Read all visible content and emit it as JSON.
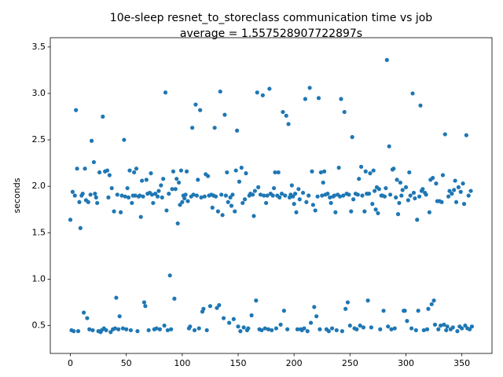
{
  "chart_data": {
    "type": "scatter",
    "title": "10e-sleep resnet_to_storeclass communication time vs job",
    "subtitle": "average = 1.557528907722897s",
    "y_label": "seconds",
    "color": "#1f77b4",
    "xlim": [
      -17.95,
      376.95
    ],
    "ylim": [
      0.2,
      3.6
    ],
    "xticks": [
      0,
      50,
      100,
      150,
      200,
      250,
      300,
      350
    ],
    "yticks": [
      0.5,
      {
        "value": 1,
        "label": "1.0"
      },
      1.5,
      {
        "value": 2,
        "label": "2.0"
      },
      2.5,
      {
        "value": 3,
        "label": "3.0"
      },
      3.5
    ],
    "x": [
      0,
      1,
      2,
      3,
      4,
      5,
      6,
      7,
      8,
      9,
      10,
      11,
      12,
      13,
      14,
      15,
      16,
      17,
      18,
      19,
      20,
      21,
      22,
      23,
      24,
      25,
      26,
      27,
      28,
      29,
      30,
      31,
      32,
      33,
      34,
      35,
      36,
      37,
      38,
      39,
      40,
      41,
      42,
      43,
      44,
      45,
      46,
      47,
      48,
      49,
      50,
      51,
      52,
      53,
      54,
      55,
      56,
      57,
      58,
      59,
      60,
      61,
      62,
      63,
      64,
      65,
      66,
      67,
      68,
      69,
      70,
      71,
      72,
      73,
      74,
      75,
      76,
      77,
      78,
      79,
      80,
      81,
      82,
      83,
      84,
      85,
      86,
      87,
      88,
      89,
      90,
      91,
      92,
      93,
      94,
      95,
      96,
      97,
      98,
      99,
      100,
      101,
      102,
      103,
      104,
      105,
      106,
      107,
      108,
      109,
      110,
      111,
      112,
      113,
      114,
      115,
      116,
      117,
      118,
      119,
      120,
      121,
      122,
      123,
      124,
      125,
      126,
      127,
      128,
      129,
      130,
      131,
      132,
      133,
      134,
      135,
      136,
      137,
      138,
      139,
      140,
      141,
      142,
      143,
      144,
      145,
      146,
      147,
      148,
      149,
      150,
      151,
      152,
      153,
      154,
      155,
      156,
      157,
      158,
      159,
      160,
      161,
      162,
      163,
      164,
      165,
      166,
      167,
      168,
      169,
      170,
      171,
      172,
      173,
      174,
      175,
      176,
      177,
      178,
      179,
      180,
      181,
      182,
      183,
      184,
      185,
      186,
      187,
      188,
      189,
      190,
      191,
      192,
      193,
      194,
      195,
      196,
      197,
      198,
      199,
      200,
      201,
      202,
      203,
      204,
      205,
      206,
      207,
      208,
      209,
      210,
      211,
      212,
      213,
      214,
      215,
      216,
      217,
      218,
      219,
      220,
      221,
      222,
      223,
      224,
      225,
      226,
      227,
      228,
      229,
      230,
      231,
      232,
      233,
      234,
      235,
      236,
      237,
      238,
      239,
      240,
      241,
      242,
      243,
      244,
      245,
      246,
      247,
      248,
      249,
      250,
      251,
      252,
      253,
      254,
      255,
      256,
      257,
      258,
      259,
      260,
      261,
      262,
      263,
      264,
      265,
      266,
      267,
      268,
      269,
      270,
      271,
      272,
      273,
      274,
      275,
      276,
      277,
      278,
      279,
      280,
      281,
      282,
      283,
      284,
      285,
      286,
      287,
      288,
      289,
      290,
      291,
      292,
      293,
      294,
      295,
      296,
      297,
      298,
      299,
      300,
      301,
      302,
      303,
      304,
      305,
      306,
      307,
      308,
      309,
      310,
      311,
      312,
      313,
      314,
      315,
      316,
      317,
      318,
      319,
      320,
      321,
      322,
      323,
      324,
      325,
      326,
      327,
      328,
      329,
      330,
      331,
      332,
      333,
      334,
      335,
      336,
      337,
      338,
      339,
      340,
      341,
      342,
      343,
      344,
      345,
      346,
      347,
      348,
      349,
      350,
      351,
      352,
      353,
      354,
      355,
      356,
      357,
      358,
      359
    ],
    "values": [
      1.64,
      0.45,
      1.94,
      0.44,
      1.9,
      2.82,
      2.19,
      0.44,
      1.83,
      1.55,
      1.9,
      1.92,
      0.64,
      2.19,
      1.85,
      0.58,
      1.83,
      0.46,
      1.91,
      2.49,
      0.45,
      2.26,
      1.92,
      1.88,
      1.82,
      0.44,
      2.15,
      0.43,
      0.45,
      2.75,
      0.47,
      2.16,
      0.45,
      2.17,
      1.88,
      2.12,
      0.43,
      1.98,
      0.46,
      1.73,
      0.47,
      0.8,
      1.91,
      0.46,
      0.6,
      1.72,
      1.9,
      0.47,
      2.5,
      1.89,
      0.46,
      1.98,
      1.88,
      2.17,
      0.45,
      1.82,
      1.9,
      2.15,
      1.9,
      2.19,
      0.44,
      1.89,
      1.9,
      1.67,
      2.06,
      1.89,
      0.75,
      0.71,
      2.07,
      1.92,
      0.45,
      1.93,
      2.14,
      1.91,
      1.82,
      0.46,
      1.92,
      0.47,
      1.89,
      1.95,
      0.46,
      2.01,
      1.88,
      2.08,
      0.5,
      3.01,
      1.74,
      0.45,
      1.92,
      1.04,
      0.46,
      1.97,
      2.16,
      0.79,
      1.97,
      2.08,
      1.6,
      2.04,
      1.8,
      2.17,
      1.83,
      1.9,
      1.87,
      1.91,
      2.16,
      1.84,
      0.47,
      0.49,
      1.89,
      2.63,
      1.91,
      0.45,
      2.88,
      1.9,
      2.07,
      0.47,
      2.82,
      1.88,
      0.65,
      0.68,
      1.89,
      2.13,
      0.45,
      2.11,
      1.9,
      0.71,
      1.91,
      1.77,
      1.9,
      2.63,
      1.89,
      0.69,
      1.73,
      0.72,
      3.02,
      1.91,
      1.69,
      0.58,
      2.77,
      1.9,
      2.15,
      1.83,
      0.53,
      1.88,
      1.79,
      1.91,
      0.57,
      1.73,
      2.17,
      2.6,
      0.49,
      2.05,
      0.44,
      2.2,
      1.82,
      0.48,
      1.86,
      2.14,
      0.45,
      0.47,
      1.9,
      1.92,
      0.61,
      1.91,
      1.68,
      1.95,
      0.77,
      3.01,
      1.99,
      0.46,
      1.91,
      0.45,
      2.98,
      1.9,
      0.47,
      1.82,
      1.9,
      0.46,
      3.05,
      1.92,
      0.45,
      1.9,
      1.98,
      2.15,
      0.47,
      1.9,
      2.15,
      1.88,
      0.51,
      1.92,
      2.8,
      0.66,
      1.9,
      2.76,
      0.46,
      2.67,
      1.88,
      1.91,
      2.01,
      1.89,
      1.81,
      1.92,
      1.72,
      0.46,
      1.97,
      1.86,
      0.46,
      0.45,
      1.93,
      0.47,
      2.94,
      1.83,
      0.44,
      1.9,
      3.06,
      0.53,
      2.16,
      1.8,
      0.7,
      1.74,
      0.6,
      1.89,
      2.95,
      0.46,
      2.15,
      1.9,
      2.04,
      2.16,
      1.91,
      0.46,
      1.92,
      0.44,
      1.88,
      1.82,
      0.47,
      1.89,
      1.9,
      1.72,
      0.45,
      1.91,
      2.2,
      1.89,
      2.94,
      0.44,
      1.9,
      2.8,
      0.68,
      1.92,
      0.75,
      1.91,
      0.5,
      1.73,
      2.53,
      1.86,
      0.47,
      1.92,
      0.46,
      1.91,
      2.08,
      0.5,
      2.21,
      1.9,
      0.48,
      1.73,
      2.16,
      1.92,
      0.77,
      1.92,
      2.14,
      0.48,
      1.81,
      2.17,
      1.95,
      1.75,
      1.99,
      1.71,
      1.97,
      0.46,
      1.9,
      1.9,
      0.66,
      1.89,
      1.98,
      3.36,
      0.49,
      2.43,
      1.91,
      0.46,
      2.18,
      2.19,
      0.47,
      1.88,
      2.07,
      1.7,
      1.82,
      2.04,
      1.9,
      1.96,
      0.66,
      0.66,
      1.99,
      0.55,
      1.85,
      2.15,
      1.9,
      0.47,
      3.0,
      1.93,
      1.87,
      0.45,
      1.64,
      0.66,
      1.89,
      2.87,
      1.95,
      1.97,
      0.45,
      1.93,
      1.91,
      0.46,
      0.68,
      1.72,
      2.07,
      0.73,
      2.09,
      0.77,
      0.51,
      2.03,
      1.84,
      0.46,
      1.84,
      0.5,
      1.83,
      2.12,
      0.51,
      2.56,
      0.45,
      0.49,
      1.89,
      1.95,
      0.46,
      1.92,
      0.48,
      1.96,
      2.06,
      1.83,
      0.44,
      1.99,
      0.49,
      1.94,
      0.47,
      2.03,
      1.81,
      0.5,
      2.55,
      0.47,
      1.9,
      0.46,
      1.95,
      0.49
    ]
  }
}
